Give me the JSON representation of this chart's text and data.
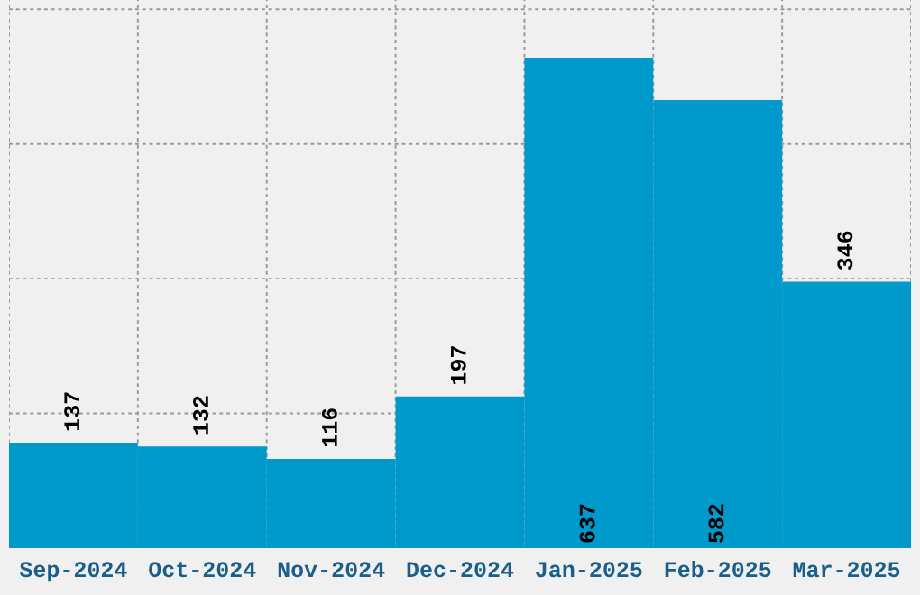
{
  "chart_data": {
    "type": "bar",
    "categories": [
      "Sep-2024",
      "Oct-2024",
      "Nov-2024",
      "Dec-2024",
      "Jan-2025",
      "Feb-2025",
      "Mar-2025"
    ],
    "values": [
      137,
      132,
      116,
      197,
      637,
      582,
      346
    ],
    "color": "#0099cc",
    "ylim": [
      0,
      712
    ],
    "yticks": [
      {
        "value": 175,
        "label": null
      },
      {
        "value": 350,
        "label": null
      },
      {
        "value": 525,
        "label": null
      },
      {
        "value": 700,
        "label": null
      }
    ],
    "tick_labels": "x",
    "grid": true,
    "data_labels": true
  }
}
